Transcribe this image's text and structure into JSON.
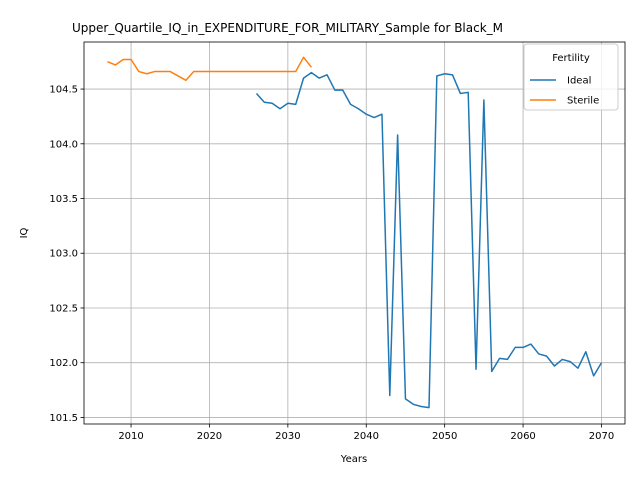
{
  "chart_data": {
    "type": "line",
    "title": "Upper_Quartile_IQ_in_EXPENDITURE_FOR_MILITARY_Sample for Black_M",
    "xlabel": "Years",
    "ylabel": "IQ",
    "xlim": [
      2004,
      2073
    ],
    "ylim": [
      101.44,
      104.93
    ],
    "xticks": [
      2010,
      2020,
      2030,
      2040,
      2050,
      2060,
      2070
    ],
    "yticks": [
      101.5,
      102.0,
      102.5,
      103.0,
      103.5,
      104.0,
      104.5
    ],
    "ytick_labels": [
      "101.5",
      "102.0",
      "102.5",
      "103.0",
      "103.5",
      "104.0",
      "104.5"
    ],
    "grid": true,
    "legend": {
      "title": "Fertility",
      "placement": "upper right"
    },
    "series": [
      {
        "name": "Ideal",
        "color": "#1f77b4",
        "x": [
          2026,
          2027,
          2028,
          2029,
          2030,
          2031,
          2032,
          2033,
          2034,
          2035,
          2036,
          2037,
          2038,
          2039,
          2040,
          2041,
          2042,
          2043,
          2044,
          2045,
          2046,
          2047,
          2048,
          2049,
          2050,
          2051,
          2052,
          2053,
          2054,
          2055,
          2056,
          2057,
          2058,
          2059,
          2060,
          2061,
          2062,
          2063,
          2064,
          2065,
          2066,
          2067,
          2068,
          2069,
          2070
        ],
        "y": [
          104.46,
          104.38,
          104.37,
          104.32,
          104.37,
          104.36,
          104.6,
          104.65,
          104.6,
          104.63,
          104.49,
          104.49,
          104.36,
          104.32,
          104.27,
          104.24,
          104.27,
          101.7,
          104.08,
          101.67,
          101.62,
          101.6,
          101.59,
          104.62,
          104.64,
          104.63,
          104.46,
          104.47,
          101.94,
          104.4,
          101.92,
          102.04,
          102.03,
          102.14,
          102.14,
          102.17,
          102.08,
          102.06,
          101.97,
          102.03,
          102.01,
          101.95,
          102.1,
          101.88,
          102.0
        ]
      },
      {
        "name": "Sterile",
        "color": "#ff7f0e",
        "x": [
          2007,
          2008,
          2009,
          2010,
          2011,
          2012,
          2013,
          2014,
          2015,
          2016,
          2017,
          2018,
          2019,
          2020,
          2021,
          2022,
          2023,
          2024,
          2025,
          2026,
          2027,
          2028,
          2029,
          2030,
          2031,
          2032,
          2033
        ],
        "y": [
          104.75,
          104.72,
          104.77,
          104.77,
          104.66,
          104.64,
          104.66,
          104.66,
          104.66,
          104.62,
          104.58,
          104.66,
          104.66,
          104.66,
          104.66,
          104.66,
          104.66,
          104.66,
          104.66,
          104.66,
          104.66,
          104.66,
          104.66,
          104.66,
          104.66,
          104.79,
          104.7
        ]
      }
    ]
  }
}
